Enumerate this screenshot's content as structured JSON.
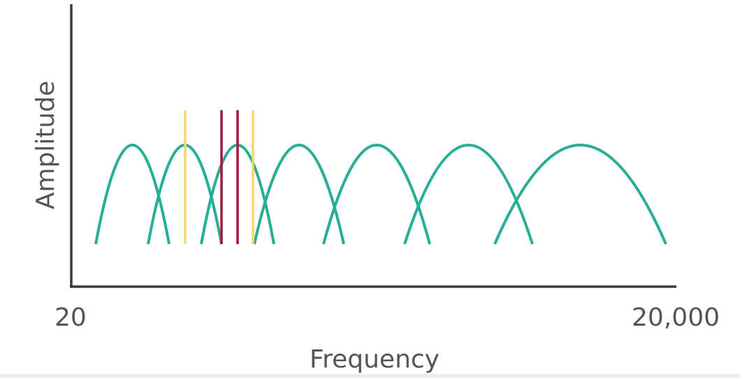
{
  "diagram": {
    "y_axis_label": "Amplitude",
    "x_axis_label": "Frequency",
    "x_min_label": "20",
    "x_max_label": "20,000"
  },
  "colors": {
    "axis": "#3a3a3a",
    "text": "#555555",
    "band": "#27ae96",
    "tone_yellow": "#f9d56e",
    "tone_red": "#a3173f"
  },
  "bands": [
    {
      "name": "band-1"
    },
    {
      "name": "band-2"
    },
    {
      "name": "band-3"
    },
    {
      "name": "band-4"
    },
    {
      "name": "band-5"
    },
    {
      "name": "band-6"
    },
    {
      "name": "band-7"
    }
  ],
  "tones": [
    {
      "name": "tone-yellow-1",
      "color": "tone_yellow"
    },
    {
      "name": "tone-red-1",
      "color": "tone_red"
    },
    {
      "name": "tone-red-2",
      "color": "tone_red"
    },
    {
      "name": "tone-yellow-2",
      "color": "tone_yellow"
    }
  ]
}
